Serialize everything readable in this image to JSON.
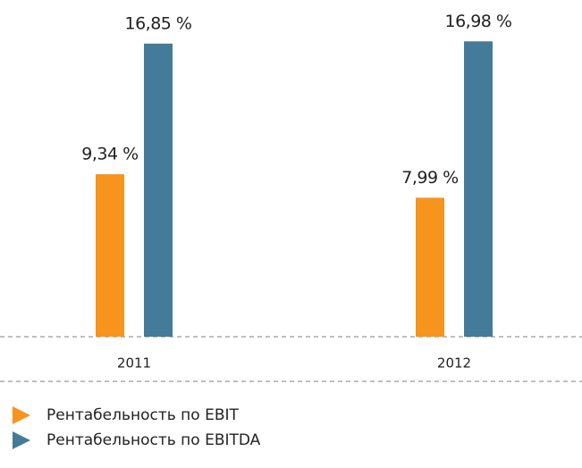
{
  "chart_data": {
    "type": "bar",
    "categories": [
      "2011",
      "2012"
    ],
    "series": [
      {
        "name": "Рентабельность по EBIT",
        "color": "#f7941d",
        "values": [
          9.34,
          7.99
        ],
        "value_labels": [
          "9,34 %",
          "7,99 %"
        ]
      },
      {
        "name": "Рентабельность по EBITDA",
        "color": "#457b9a",
        "values": [
          16.85,
          16.98
        ],
        "value_labels": [
          "16,85 %",
          "16,98 %"
        ]
      }
    ],
    "ylim": [
      0,
      17.2
    ],
    "legend": "bottom-left"
  }
}
